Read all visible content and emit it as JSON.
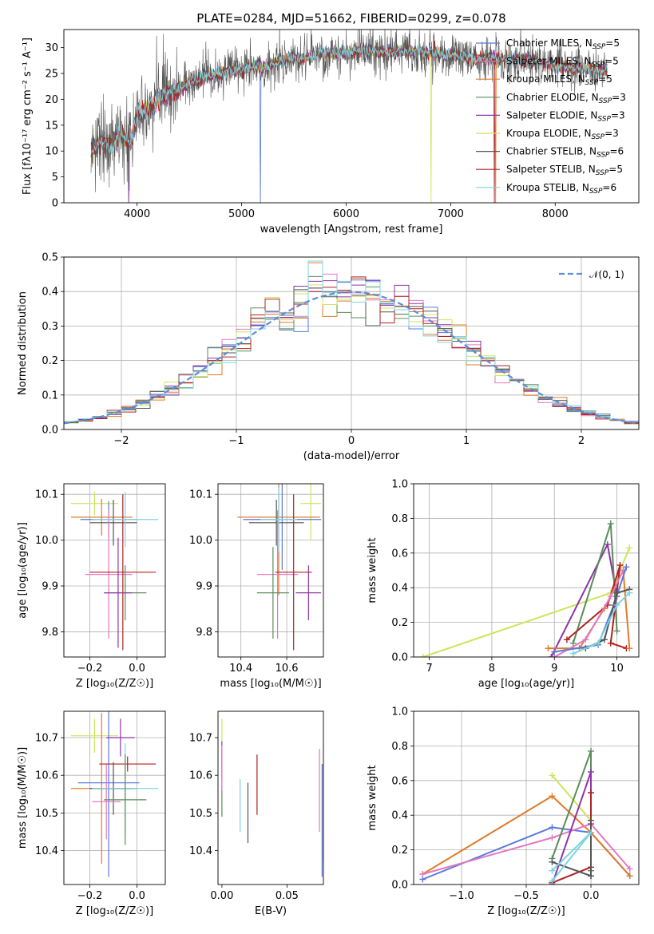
{
  "figure_title": "PLATE=0284, MJD=51662, FIBERID=0299, z=0.078",
  "chart_data": [
    {
      "id": "spectrum",
      "type": "line",
      "xlabel": "wavelength [Angstrom, rest frame]",
      "ylabel": "Flux [f$_\\lambda 10^{-17}$ erg cm$^{-2}$ s$^{-1}$ A$^{-1}$]",
      "ylabel_display": "Flux [fλ10⁻¹⁷ erg cm⁻² s⁻¹ A⁻¹]",
      "xlim": [
        3300,
        8800
      ],
      "ylim": [
        0,
        33.5
      ],
      "xticks": [
        4000,
        5000,
        6000,
        7000,
        8000
      ],
      "yticks": [
        0,
        5,
        10,
        15,
        20,
        25,
        30
      ],
      "continuum": {
        "x": [
          3550,
          3650,
          3750,
          3850,
          3950,
          4000,
          4100,
          4200,
          4300,
          4400,
          4500,
          4600,
          4700,
          4800,
          4900,
          5000,
          5100,
          5200,
          5300,
          5400,
          5500,
          5600,
          5700,
          5800,
          5900,
          6000,
          6200,
          6400,
          6600,
          6800,
          7000,
          7200,
          7400,
          7600,
          7800,
          8000,
          8200,
          8500
        ],
        "y": [
          10,
          12,
          11,
          13,
          12,
          17,
          18,
          20,
          21,
          22,
          23,
          24,
          24.5,
          25,
          25.5,
          25.5,
          26.5,
          26,
          27,
          27.5,
          28,
          28,
          28.5,
          29,
          29,
          29,
          29.5,
          29,
          29.5,
          29,
          28.5,
          28,
          28,
          27.5,
          27.5,
          26.5,
          26,
          25.5
        ]
      },
      "series": [
        {
          "name": "Chabrier MILES, N$_{SSP}$=5",
          "label": "Chabrier MILES, N",
          "sub": "SSP",
          "tail": "=5",
          "color": "#5a7ad9"
        },
        {
          "name": "Salpeter MILES, N$_{SSP}$=5",
          "label": "Salpeter MILES, N",
          "sub": "SSP",
          "tail": "=5",
          "color": "#e377c2"
        },
        {
          "name": "Kroupa MILES, N$_{SSP}$=5",
          "label": "Kroupa MILES, N",
          "sub": "SSP",
          "tail": "=5",
          "color": "#e07b2a"
        },
        {
          "name": "Chabrier ELODIE, N$_{SSP}$=3",
          "label": "Chabrier ELODIE, N",
          "sub": "SSP",
          "tail": "=3",
          "color": "#5b8c5a"
        },
        {
          "name": "Salpeter ELODIE, N$_{SSP}$=3",
          "label": "Salpeter ELODIE, N",
          "sub": "SSP",
          "tail": "=3",
          "color": "#8e35a8"
        },
        {
          "name": "Kroupa ELODIE, N$_{SSP}$=3",
          "label": "Kroupa ELODIE, N",
          "sub": "SSP",
          "tail": "=3",
          "color": "#cfe45a"
        },
        {
          "name": "Chabrier STELIB, N$_{SSP}$=6",
          "label": "Chabrier STELIB, N",
          "sub": "SSP",
          "tail": "=6",
          "color": "#555555"
        },
        {
          "name": "Salpeter STELIB, N$_{SSP}$=5",
          "label": "Salpeter STELIB, N",
          "sub": "SSP",
          "tail": "=5",
          "color": "#b22020"
        },
        {
          "name": "Kroupa STELIB, N$_{SSP}$=6",
          "label": "Kroupa STELIB, N",
          "sub": "SSP",
          "tail": "=6",
          "color": "#7fd3e0"
        }
      ]
    },
    {
      "id": "residual-hist",
      "type": "line",
      "xlabel": "(data-model)/error",
      "ylabel": "Normed distribution",
      "xlim": [
        -2.5,
        2.5
      ],
      "ylim": [
        0,
        0.5
      ],
      "xticks": [
        -2,
        -1,
        0,
        1,
        2
      ],
      "xtick_labels": [
        "−2",
        "−1",
        "0",
        "1",
        "2"
      ],
      "yticks": [
        0.0,
        0.1,
        0.2,
        0.3,
        0.4,
        0.5
      ],
      "ytick_labels": [
        "0.0",
        "0.1",
        "0.2",
        "0.3",
        "0.4",
        "0.5"
      ],
      "grid": true,
      "legend": "𝒩(0, 1)",
      "legend_position": "top-right",
      "bins": 40,
      "normal_curve": {
        "mean": 0,
        "sigma": 1,
        "color": "#5b8dd6"
      }
    },
    {
      "id": "age-vs-Z",
      "type": "scatter",
      "xlabel": "Z [log₁₀(Z/Z☉)]",
      "ylabel": "age  [log₁₀(age/yr)]",
      "xlim": [
        -0.31,
        0.12
      ],
      "ylim": [
        9.745,
        10.123
      ],
      "xticks": [
        -0.2,
        0.0
      ],
      "xtick_labels": [
        "−0.2",
        "0.0"
      ],
      "yticks": [
        9.8,
        9.9,
        10.0,
        10.1
      ],
      "ytick_labels": [
        "9.8",
        "9.9",
        "10.0",
        "10.1"
      ],
      "grid": true,
      "points": [
        {
          "x": -0.18,
          "xerr": 0.1,
          "y": 10.08,
          "yerr": 0.026,
          "color": "#cfe45a"
        },
        {
          "x": -0.15,
          "xerr": 0.13,
          "y": 10.05,
          "yerr": 0.04,
          "color": "#e07b2a"
        },
        {
          "x": -0.12,
          "xerr": 0.12,
          "y": 10.045,
          "yerr": 0.04,
          "color": "#5a7ad9"
        },
        {
          "x": -0.1,
          "xerr": 0.1,
          "y": 10.038,
          "yerr": 0.05,
          "color": "#555555"
        },
        {
          "x": -0.12,
          "xerr": 0.1,
          "y": 9.925,
          "yerr": 0.14,
          "color": "#e377c2"
        },
        {
          "x": -0.06,
          "xerr": 0.14,
          "y": 9.93,
          "yerr": 0.17,
          "color": "#b22020"
        },
        {
          "x": -0.05,
          "xerr": 0.14,
          "y": 10.045,
          "yerr": 0.06,
          "color": "#7fd3e0"
        },
        {
          "x": -0.05,
          "xerr": 0.09,
          "y": 9.885,
          "yerr": 0.06,
          "color": "#5b8c5a"
        },
        {
          "x": -0.08,
          "xerr": 0.06,
          "y": 9.885,
          "yerr": 0.12,
          "color": "#8e35a8"
        }
      ]
    },
    {
      "id": "age-vs-mass",
      "type": "scatter",
      "xlabel": "mass [log₁₀(M/M☉)]",
      "ylabel": "",
      "xlim": [
        10.3,
        10.76
      ],
      "ylim": [
        9.745,
        10.123
      ],
      "xticks": [
        10.4,
        10.6
      ],
      "xtick_labels": [
        "10.4",
        "10.6"
      ],
      "yticks": [
        9.8,
        9.9,
        10.0,
        10.1
      ],
      "ytick_labels": [
        "9.8",
        "9.9",
        "10.0",
        "10.1"
      ],
      "grid": true,
      "points": [
        {
          "x": 10.705,
          "xerr": 0.045,
          "y": 10.08,
          "yerr": 0.08,
          "color": "#cfe45a"
        },
        {
          "x": 10.565,
          "xerr": 0.18,
          "y": 10.05,
          "yerr": 0.17,
          "color": "#e07b2a"
        },
        {
          "x": 10.58,
          "xerr": 0.17,
          "y": 10.045,
          "yerr": 0.11,
          "color": "#5a7ad9"
        },
        {
          "x": 10.555,
          "xerr": 0.12,
          "y": 10.038,
          "yerr": 0.05,
          "color": "#555555"
        },
        {
          "x": 10.56,
          "xerr": 0.09,
          "y": 9.925,
          "yerr": 0.14,
          "color": "#e377c2"
        },
        {
          "x": 10.63,
          "xerr": 0.08,
          "y": 9.93,
          "yerr": 0.17,
          "color": "#b22020"
        },
        {
          "x": 10.565,
          "xerr": 0.08,
          "y": 10.045,
          "yerr": 0.07,
          "color": "#7fd3e0"
        },
        {
          "x": 10.54,
          "xerr": 0.07,
          "y": 9.885,
          "yerr": 0.1,
          "color": "#5b8c5a"
        },
        {
          "x": 10.695,
          "xerr": 0.055,
          "y": 9.885,
          "yerr": 0.06,
          "color": "#8e35a8"
        }
      ]
    },
    {
      "id": "mass-weight-vs-age",
      "type": "line",
      "xlabel": "age  [log₁₀(age/yr)]",
      "ylabel": "mass weight",
      "xlim": [
        6.75,
        10.35
      ],
      "ylim": [
        0,
        1.0
      ],
      "xticks": [
        7,
        8,
        9,
        10
      ],
      "xtick_labels": [
        "7",
        "8",
        "9",
        "10"
      ],
      "yticks": [
        0.0,
        0.2,
        0.4,
        0.6,
        0.8,
        1.0
      ],
      "ytick_labels": [
        "0.0",
        "0.2",
        "0.4",
        "0.6",
        "0.8",
        "1.0"
      ],
      "grid": true,
      "series": [
        {
          "color": "#cfe45a",
          "x": [
            6.9,
            9.9,
            10.2
          ],
          "y": [
            0.0,
            0.37,
            0.63
          ]
        },
        {
          "color": "#8e35a8",
          "x": [
            8.95,
            9.85,
            10.0
          ],
          "y": [
            0.0,
            0.65,
            0.35
          ]
        },
        {
          "color": "#5b8c5a",
          "x": [
            9.3,
            9.9,
            10.0
          ],
          "y": [
            0.08,
            0.77,
            0.15
          ]
        },
        {
          "color": "#b22020",
          "x": [
            9.2,
            9.85,
            10.05,
            9.9,
            10.15
          ],
          "y": [
            0.1,
            0.3,
            0.53,
            0.08,
            0.05
          ]
        },
        {
          "color": "#e07b2a",
          "x": [
            8.9,
            9.4,
            9.8,
            10.1,
            10.2
          ],
          "y": [
            0.05,
            0.05,
            0.28,
            0.5,
            0.05
          ]
        },
        {
          "color": "#e377c2",
          "x": [
            9.0,
            9.5,
            9.9,
            10.1
          ],
          "y": [
            0.0,
            0.1,
            0.35,
            0.5
          ]
        },
        {
          "color": "#5a7ad9",
          "x": [
            9.0,
            9.7,
            9.95,
            10.15
          ],
          "y": [
            0.03,
            0.07,
            0.3,
            0.52
          ]
        },
        {
          "color": "#555555",
          "x": [
            9.5,
            9.8,
            10.0,
            10.2
          ],
          "y": [
            0.05,
            0.1,
            0.37,
            0.39
          ]
        },
        {
          "color": "#7fd3e0",
          "x": [
            9.3,
            9.7,
            10.0,
            10.2
          ],
          "y": [
            0.02,
            0.08,
            0.3,
            0.37
          ]
        }
      ]
    },
    {
      "id": "mass-vs-Z",
      "type": "scatter",
      "xlabel": "Z [log₁₀(Z/Z☉)]",
      "ylabel": "mass [log₁₀(M/M☉)]",
      "xlim": [
        -0.31,
        0.12
      ],
      "ylim": [
        10.31,
        10.77
      ],
      "xticks": [
        -0.2,
        0.0
      ],
      "xtick_labels": [
        "−0.2",
        "0.0"
      ],
      "yticks": [
        10.4,
        10.5,
        10.6,
        10.7
      ],
      "ytick_labels": [
        "10.4",
        "10.5",
        "10.6",
        "10.7"
      ],
      "grid": true,
      "points": [
        {
          "x": -0.18,
          "xerr": 0.1,
          "y": 10.705,
          "yerr": 0.045,
          "color": "#cfe45a"
        },
        {
          "x": -0.15,
          "xerr": 0.13,
          "y": 10.565,
          "yerr": 0.2,
          "color": "#e07b2a"
        },
        {
          "x": -0.12,
          "xerr": 0.13,
          "y": 10.58,
          "yerr": 0.25,
          "color": "#5a7ad9"
        },
        {
          "x": -0.1,
          "xerr": 0.1,
          "y": 10.565,
          "yerr": 0.07,
          "color": "#555555"
        },
        {
          "x": -0.13,
          "xerr": 0.06,
          "y": 10.53,
          "yerr": 0.1,
          "color": "#e377c2"
        },
        {
          "x": -0.07,
          "xerr": 0.06,
          "y": 10.7,
          "yerr": 0.05,
          "color": "#8e35a8"
        },
        {
          "x": -0.04,
          "xerr": 0.12,
          "y": 10.63,
          "yerr": 0.02,
          "color": "#b22020"
        },
        {
          "x": -0.05,
          "xerr": 0.14,
          "y": 10.565,
          "yerr": 0.12,
          "color": "#7fd3e0"
        },
        {
          "x": -0.05,
          "xerr": 0.09,
          "y": 10.535,
          "yerr": 0.12,
          "color": "#5b8c5a"
        }
      ]
    },
    {
      "id": "mass-vs-ebv",
      "type": "scatter",
      "xlabel": "E(B-V)",
      "ylabel": "",
      "xlim": [
        -0.003,
        0.078
      ],
      "ylim": [
        10.31,
        10.77
      ],
      "xticks": [
        0.0,
        0.05
      ],
      "xtick_labels": [
        "0.00",
        "0.05"
      ],
      "yticks": [
        10.4,
        10.5,
        10.6,
        10.7
      ],
      "ytick_labels": [
        "10.4",
        "10.5",
        "10.6",
        "10.7"
      ],
      "grid": false,
      "points": [
        {
          "x": 0.0,
          "y": 10.705,
          "yerr": 0.045,
          "color": "#cfe45a"
        },
        {
          "x": 0.0,
          "y": 10.58,
          "yerr": 0.09,
          "color": "#5b8c5a"
        },
        {
          "x": 0.0,
          "y": 10.64,
          "yerr": 0.05,
          "color": "#8e35a8"
        },
        {
          "x": 0.0,
          "y": 10.62,
          "yerr": 0.06,
          "color": "#e377c2"
        },
        {
          "x": 0.014,
          "y": 10.52,
          "yerr": 0.07,
          "color": "#7fd3e0"
        },
        {
          "x": 0.02,
          "y": 10.5,
          "yerr": 0.08,
          "color": "#555555"
        },
        {
          "x": 0.027,
          "y": 10.575,
          "yerr": 0.08,
          "color": "#b22020"
        },
        {
          "x": 0.075,
          "y": 10.56,
          "yerr": 0.11,
          "color": "#e377c2"
        },
        {
          "x": 0.077,
          "y": 10.48,
          "yerr": 0.15,
          "color": "#5a7ad9"
        },
        {
          "x": 0.078,
          "y": 10.5,
          "yerr": 0.13,
          "color": "#e07b2a"
        }
      ]
    },
    {
      "id": "mass-weight-vs-Z",
      "type": "line",
      "xlabel": "Z [log₁₀(Z/Z☉)]",
      "ylabel": "mass weight",
      "xlim": [
        -1.37,
        0.37
      ],
      "ylim": [
        0,
        1.0
      ],
      "xticks": [
        -1.0,
        -0.5,
        0.0
      ],
      "xtick_labels": [
        "−1.0",
        "−0.5",
        "0.0"
      ],
      "yticks": [
        0.0,
        0.2,
        0.4,
        0.6,
        0.8,
        1.0
      ],
      "ytick_labels": [
        "0.0",
        "0.2",
        "0.4",
        "0.6",
        "0.8",
        "1.0"
      ],
      "grid": true,
      "series": [
        {
          "color": "#5a7ad9",
          "x": [
            -1.3,
            -0.3,
            0.0,
            0.3
          ],
          "y": [
            0.03,
            0.33,
            0.3,
            0.05
          ]
        },
        {
          "color": "#e07b2a",
          "x": [
            -1.3,
            -0.3,
            0.0,
            0.3
          ],
          "y": [
            0.06,
            0.51,
            0.3,
            0.05
          ]
        },
        {
          "color": "#e377c2",
          "x": [
            -1.3,
            -0.3,
            0.0,
            0.3
          ],
          "y": [
            0.06,
            0.27,
            0.35,
            0.09
          ]
        },
        {
          "color": "#cfe45a",
          "x": [
            -0.3,
            0.0
          ],
          "y": [
            0.63,
            0.37
          ]
        },
        {
          "color": "#5b8c5a",
          "x": [
            -0.3,
            0.0,
            0.0
          ],
          "y": [
            0.15,
            0.77,
            0.08
          ]
        },
        {
          "color": "#8e35a8",
          "x": [
            -0.3,
            0.0,
            0.0
          ],
          "y": [
            0.0,
            0.65,
            0.35
          ]
        },
        {
          "color": "#b22020",
          "x": [
            -0.3,
            0.0,
            0.0,
            0.0
          ],
          "y": [
            0.01,
            0.1,
            0.53,
            0.05
          ]
        },
        {
          "color": "#555555",
          "x": [
            -0.3,
            0.0,
            0.0
          ],
          "y": [
            0.13,
            0.05,
            0.37
          ]
        },
        {
          "color": "#7fd3e0",
          "x": [
            -0.3,
            0.0,
            -0.3
          ],
          "y": [
            0.08,
            0.3,
            0.02
          ]
        }
      ]
    }
  ]
}
